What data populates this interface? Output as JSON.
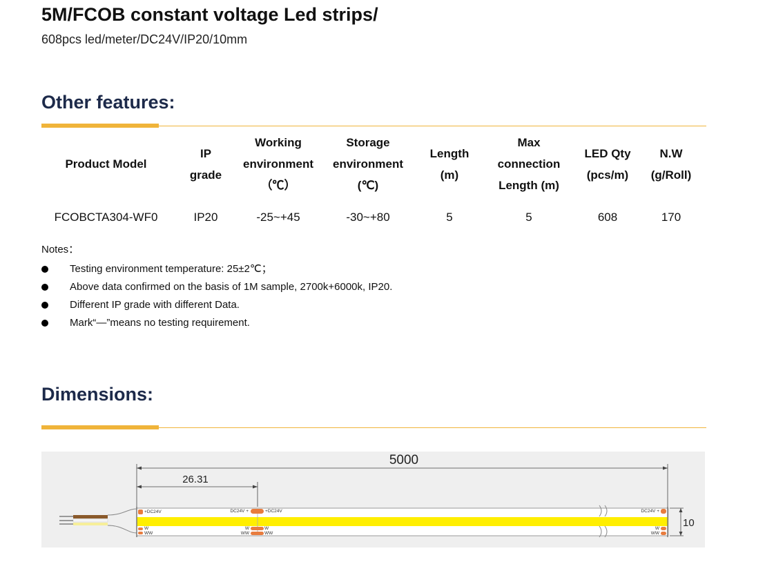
{
  "header": {
    "title": "5M/FCOB constant voltage Led strips/",
    "subtitle": "608pcs led/meter/DC24V/IP20/10mm"
  },
  "features": {
    "heading": "Other features:",
    "columns": [
      {
        "lines": [
          "Product Model"
        ]
      },
      {
        "lines": [
          "IP",
          "grade"
        ]
      },
      {
        "lines": [
          "Working",
          "environment",
          "（℃）"
        ]
      },
      {
        "lines": [
          "Storage",
          "environment",
          "(℃)"
        ]
      },
      {
        "lines": [
          "Length",
          "(m)"
        ]
      },
      {
        "lines": [
          "Max",
          "connection",
          "Length (m)"
        ]
      },
      {
        "lines": [
          "LED Qty",
          "(pcs/m)"
        ]
      },
      {
        "lines": [
          "N.W",
          "(g/Roll)"
        ]
      }
    ],
    "row": [
      "FCOBCTA304-WF0",
      "IP20",
      "-25~+45",
      "-30~+80",
      "5",
      "5",
      "608",
      "170"
    ]
  },
  "notes": {
    "label": "Notes：",
    "items": [
      "Testing environment temperature: 25±2℃；",
      "Above data confirmed on the basis of 1M sample, 2700k+6000k, IP20.",
      "Different IP grade with different Data.",
      "Mark“—”means no testing requirement."
    ]
  },
  "dimensions": {
    "heading": "Dimensions:",
    "total_length": "5000",
    "cut_length": "26.31",
    "width": "10",
    "pad_labels": {
      "plus_dc24v": "+DC24V",
      "dc24v_plus": "DC24V +",
      "w": "W",
      "ww": "WW"
    },
    "colors": {
      "strip": "#ffee00",
      "pad": "#e87c3e",
      "wire_brown": "#8a5a2b",
      "wire_white": "#f5f5f5",
      "wire_yellow": "#f7ef9a",
      "wire_grey": "#9a9a9a"
    }
  },
  "theme": {
    "accent": "#f0b43a",
    "heading_color": "#1d2a4a"
  }
}
